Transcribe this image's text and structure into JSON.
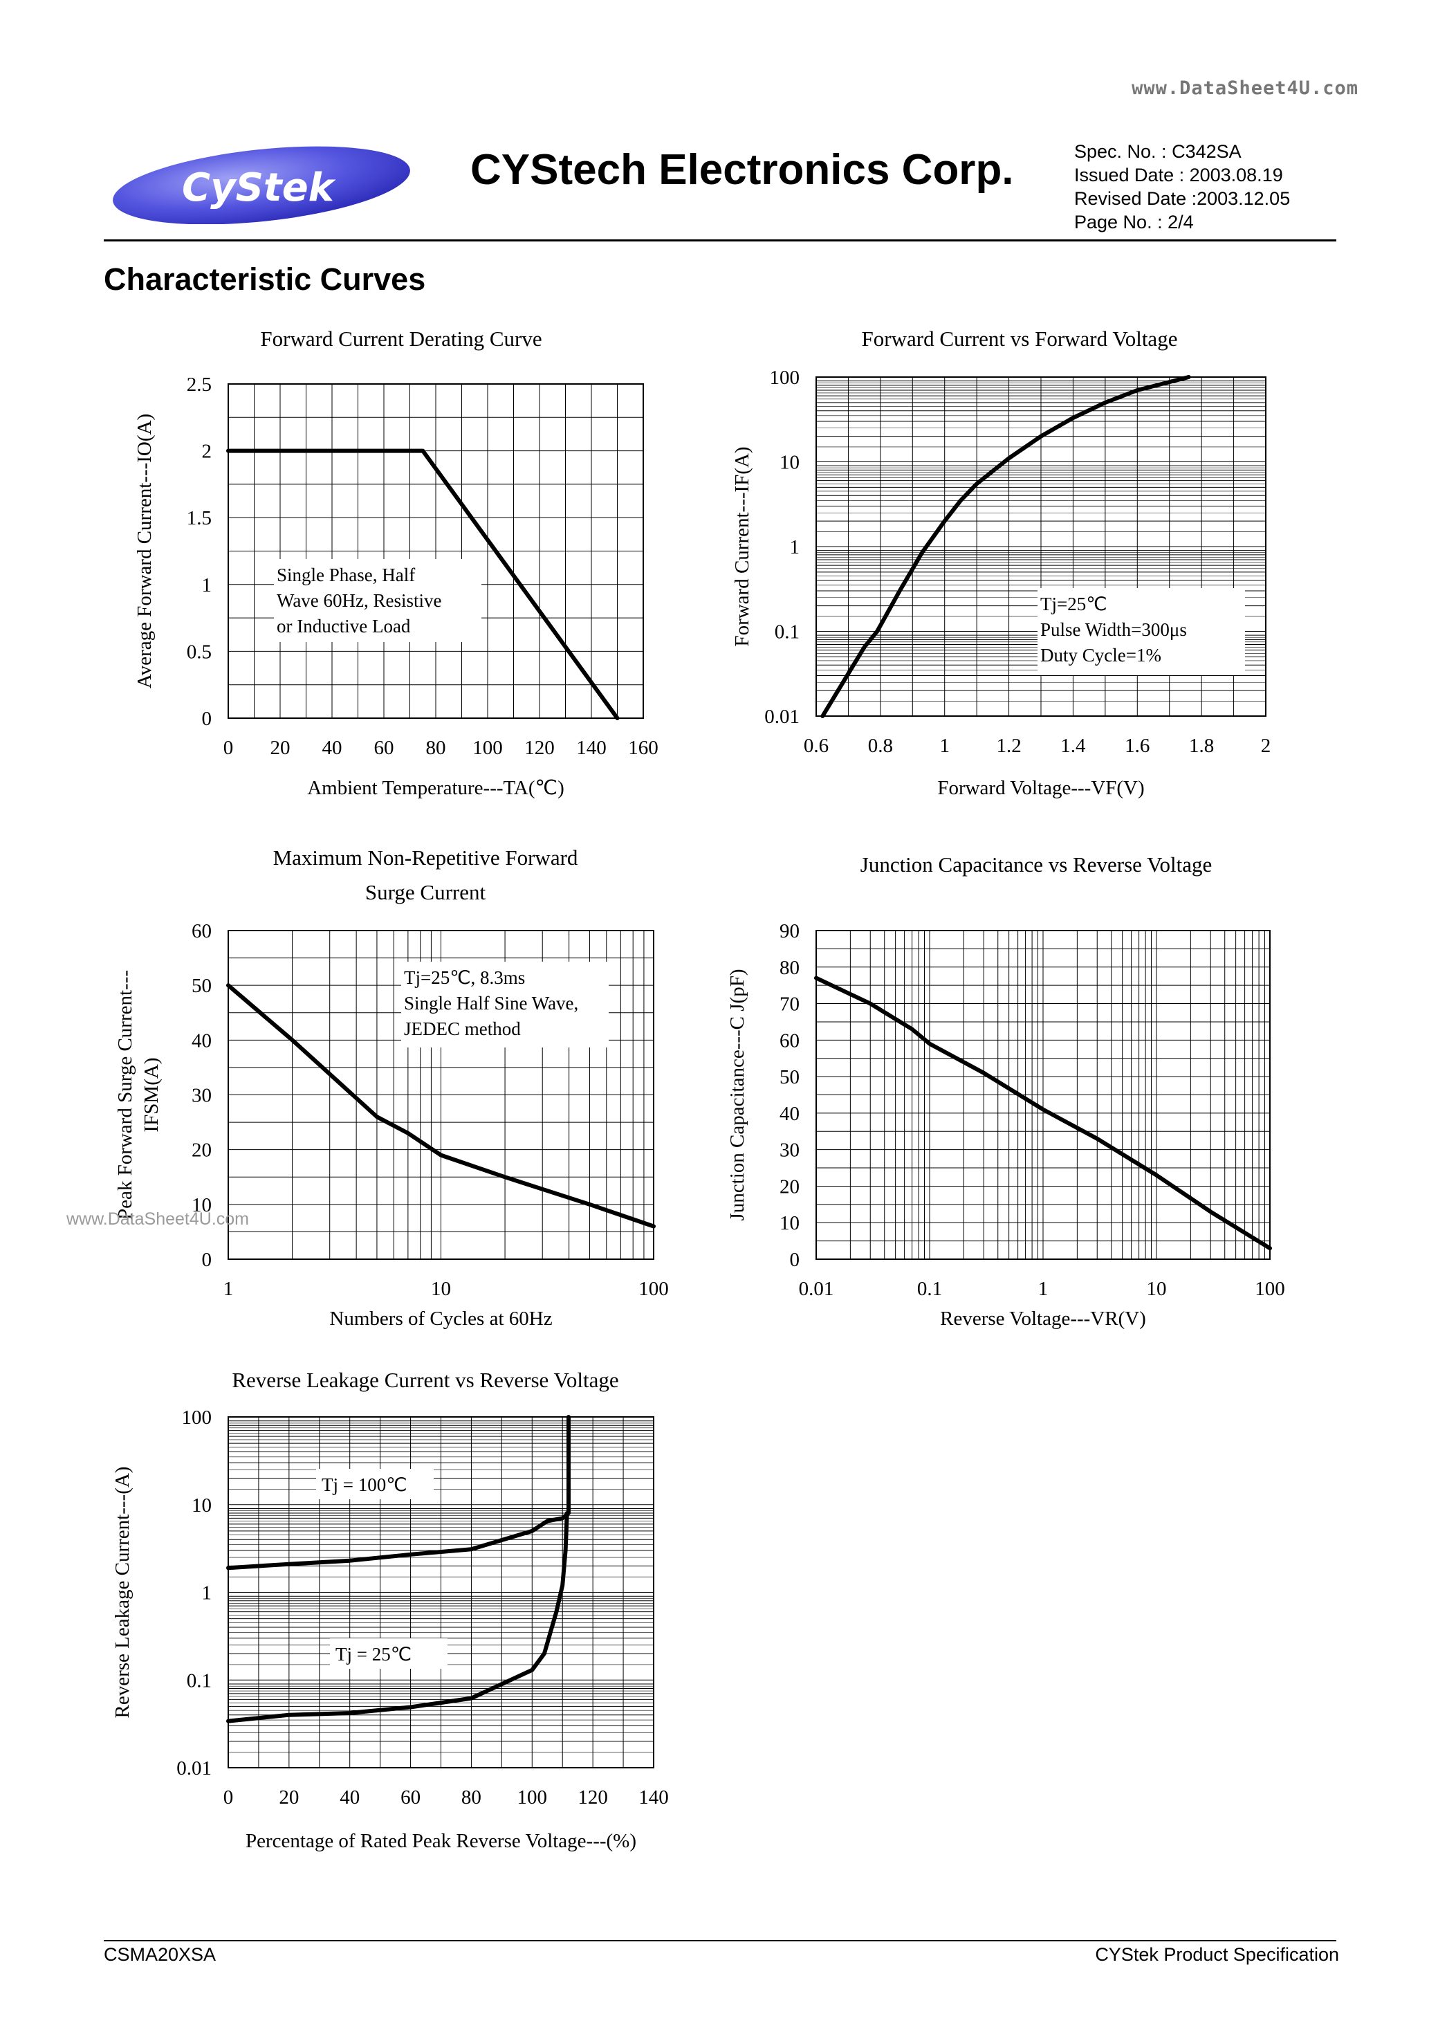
{
  "header": {
    "watermark": "www.DataSheet4U.com",
    "logo_text": "CyStek",
    "company": "CYStech Electronics Corp.",
    "spec_lines": [
      "Spec. No. : C342SA",
      "Issued Date : 2003.08.19",
      "Revised Date :2003.12.05",
      "Page No. : 2/4"
    ]
  },
  "section_title": "Characteristic Curves",
  "watermark_mid": "www.DataSheet4U.com",
  "footer": {
    "left": "CSMA20XSA",
    "right": "CYStek Product Specification"
  },
  "chart_data": [
    {
      "type": "line",
      "title": "Forward Current Derating Curve",
      "xlabel": "Ambient Temperature---TA(℃)",
      "ylabel": "Average Forward Current---IO(A)",
      "xlim": [
        0,
        160
      ],
      "ylim": [
        0,
        2.5
      ],
      "xticks": [
        "0",
        "20",
        "40",
        "60",
        "80",
        "100",
        "120",
        "140",
        "160"
      ],
      "yticks": [
        "0",
        "0.5",
        "1",
        "1.5",
        "2",
        "2.5"
      ],
      "x": [
        0,
        75,
        150
      ],
      "y": [
        2,
        2,
        0
      ],
      "annotation": [
        "Single Phase, Half",
        "Wave 60Hz, Resistive",
        " or Inductive Load"
      ],
      "grid": true
    },
    {
      "type": "line",
      "title": "Forward Current vs Forward Voltage",
      "xlabel": "Forward Voltage---VF(V)",
      "ylabel": "Forward Current---IF(A)",
      "xlim": [
        0.6,
        2
      ],
      "ylim": [
        0.01,
        100
      ],
      "yscale": "log",
      "xticks": [
        "0.6",
        "0.8",
        "1",
        "1.2",
        "1.4",
        "1.6",
        "1.8",
        "2"
      ],
      "yticks": [
        "0.01",
        "0.1",
        "1",
        "10",
        "100"
      ],
      "x": [
        0.62,
        0.75,
        0.79,
        0.86,
        0.93,
        1.0,
        1.05,
        1.1,
        1.2,
        1.3,
        1.4,
        1.5,
        1.6,
        1.76
      ],
      "y": [
        0.01,
        0.065,
        0.1,
        0.3,
        0.85,
        2,
        3.5,
        5.5,
        11,
        20,
        33,
        50,
        70,
        100
      ],
      "annotation": [
        "Tj=25℃",
        "Pulse Width=300μs",
        "Duty Cycle=1%"
      ],
      "grid": true
    },
    {
      "type": "line",
      "title": "Maximum Non-Repetitive Forward Surge Current",
      "xlabel": "Numbers of Cycles at 60Hz",
      "ylabel": "Peak Forward Surge Current---IFSM(A)",
      "xlim": [
        1,
        100
      ],
      "ylim": [
        0,
        60
      ],
      "xscale": "log",
      "xticks": [
        "1",
        "10",
        "100"
      ],
      "yticks": [
        "0",
        "10",
        "20",
        "30",
        "40",
        "50",
        "60"
      ],
      "x": [
        1,
        2,
        5,
        7,
        10,
        20,
        50,
        100
      ],
      "y": [
        50,
        40,
        26,
        23,
        19,
        15,
        10,
        6
      ],
      "annotation": [
        "Tj=25℃, 8.3ms",
        "Single Half  Sine Wave,",
        "JEDEC method"
      ],
      "grid": true
    },
    {
      "type": "line",
      "title": "Junction Capacitance vs Reverse Voltage",
      "xlabel": "Reverse Voltage---VR(V)",
      "ylabel": "Junction Capacitance---C J(pF)",
      "xlim": [
        0.01,
        100
      ],
      "ylim": [
        0,
        90
      ],
      "xscale": "log",
      "xticks": [
        "0.01",
        "0.1",
        "1",
        "10",
        "100"
      ],
      "yticks": [
        "0",
        "10",
        "20",
        "30",
        "40",
        "50",
        "60",
        "70",
        "80",
        "90"
      ],
      "x": [
        0.01,
        0.03,
        0.07,
        0.1,
        0.3,
        1,
        3,
        10,
        30,
        100
      ],
      "y": [
        77,
        70,
        63,
        59,
        51,
        41,
        33,
        23,
        13,
        3
      ],
      "grid": true
    },
    {
      "type": "line",
      "title": "Reverse Leakage Current vs Reverse Voltage",
      "xlabel": "Percentage of Rated Peak Reverse Voltage---(%)",
      "ylabel": "Reverse Leakage Current---(A)",
      "xlim": [
        0,
        140
      ],
      "ylim": [
        0.01,
        100
      ],
      "yscale": "log",
      "xticks": [
        "0",
        "20",
        "40",
        "60",
        "80",
        "100",
        "120",
        "140"
      ],
      "yticks": [
        "0.01",
        "0.1",
        "1",
        "10",
        "100"
      ],
      "series": [
        {
          "name": "Tj = 100℃",
          "x": [
            0,
            20,
            40,
            60,
            80,
            100,
            105,
            110,
            112,
            112,
            112
          ],
          "y": [
            1.9,
            2.1,
            2.3,
            2.7,
            3.1,
            5,
            6.5,
            7,
            8,
            30,
            100
          ]
        },
        {
          "name": "Tj = 25℃",
          "x": [
            0,
            20,
            40,
            60,
            80,
            100,
            104,
            108,
            110,
            111,
            111.5
          ],
          "y": [
            0.034,
            0.04,
            0.042,
            0.049,
            0.062,
            0.13,
            0.2,
            0.6,
            1.2,
            3,
            8
          ]
        }
      ],
      "grid": true
    }
  ]
}
